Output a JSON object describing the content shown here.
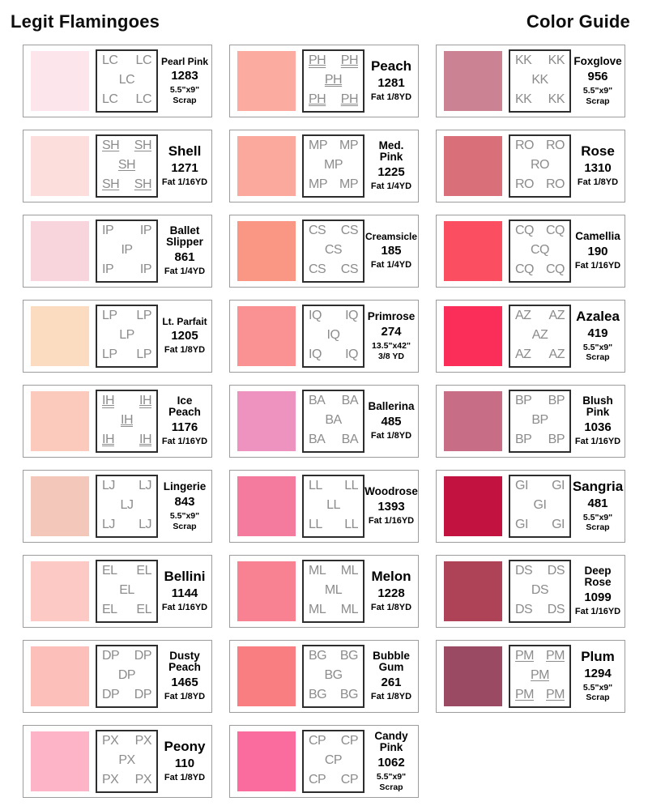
{
  "header": {
    "title_left": "Legit Flamingoes",
    "title_right": "Color Guide"
  },
  "palette": {
    "code_text_color": "#8c8c8c",
    "code_box_border": "#2d2d2d",
    "card_border": "#9c9c9c"
  },
  "cards": [
    {
      "code": "LC",
      "underline": "none",
      "name": "Pearl Pink",
      "number": "1283",
      "size": "5.5\"x9\"\nScrap",
      "swatch": "#fde5ec"
    },
    {
      "code": "PH",
      "underline": "double",
      "name": "Peach",
      "number": "1281",
      "size": "Fat 1/8YD",
      "swatch": "#fcaba0"
    },
    {
      "code": "KK",
      "underline": "none",
      "name": "Foxglove",
      "number": "956",
      "size": "5.5\"x9\"\nScrap",
      "swatch": "#cb8292"
    },
    {
      "code": "SH",
      "underline": "single",
      "name": "Shell",
      "number": "1271",
      "size": "Fat 1/16YD",
      "swatch": "#fcdfdd"
    },
    {
      "code": "MP",
      "underline": "none",
      "name": "Med.\nPink",
      "number": "1225",
      "size": "Fat 1/4YD",
      "swatch": "#fba99c"
    },
    {
      "code": "RO",
      "underline": "none",
      "name": "Rose",
      "number": "1310",
      "size": "Fat 1/8YD",
      "swatch": "#d96f79"
    },
    {
      "code": "IP",
      "underline": "none",
      "name": "Ballet\nSlipper",
      "number": "861",
      "size": "Fat 1/4YD",
      "swatch": "#f8d4dc"
    },
    {
      "code": "CS",
      "underline": "none",
      "name": "Creamsicle",
      "number": "185",
      "size": "Fat 1/4YD",
      "swatch": "#f99784"
    },
    {
      "code": "CQ",
      "underline": "none",
      "name": "Camellia",
      "number": "190",
      "size": "Fat 1/16YD",
      "swatch": "#fb4f61"
    },
    {
      "code": "LP",
      "underline": "none",
      "name": "Lt. Parfait",
      "number": "1205",
      "size": "Fat 1/8YD",
      "swatch": "#fbdcc0"
    },
    {
      "code": "IQ",
      "underline": "none",
      "name": "Primrose",
      "number": "274",
      "size": "13.5\"x42\"\n3/8 YD",
      "swatch": "#fa9193"
    },
    {
      "code": "AZ",
      "underline": "none",
      "name": "Azalea",
      "number": "419",
      "size": "5.5\"x9\"\nScrap",
      "swatch": "#fa2e58"
    },
    {
      "code": "IH",
      "underline": "double",
      "name": "Ice Peach",
      "number": "1176",
      "size": "Fat 1/16YD",
      "swatch": "#fccabd"
    },
    {
      "code": "BA",
      "underline": "none",
      "name": "Ballerina",
      "number": "485",
      "size": "Fat 1/8YD",
      "swatch": "#ee92bf"
    },
    {
      "code": "BP",
      "underline": "none",
      "name": "Blush\nPink",
      "number": "1036",
      "size": "Fat 1/16YD",
      "swatch": "#c76d86"
    },
    {
      "code": "LJ",
      "underline": "none",
      "name": "Lingerie",
      "number": "843",
      "size": "5.5\"x9\"\nScrap",
      "swatch": "#f3c8ba"
    },
    {
      "code": "LL",
      "underline": "none",
      "name": "Woodrose",
      "number": "1393",
      "size": "Fat 1/16YD",
      "swatch": "#f47b9e"
    },
    {
      "code": "GI",
      "underline": "none",
      "name": "Sangria",
      "number": "481",
      "size": "5.5\"x9\"\nScrap",
      "swatch": "#c21240"
    },
    {
      "code": "EL",
      "underline": "none",
      "name": "Bellini",
      "number": "1144",
      "size": "Fat 1/16YD",
      "swatch": "#fcc9c4"
    },
    {
      "code": "ML",
      "underline": "none",
      "name": "Melon",
      "number": "1228",
      "size": "Fat 1/8YD",
      "swatch": "#f98292"
    },
    {
      "code": "DS",
      "underline": "none",
      "name": "Deep\nRose",
      "number": "1099",
      "size": "Fat 1/16YD",
      "swatch": "#ae4257"
    },
    {
      "code": "DP",
      "underline": "none",
      "name": "Dusty\nPeach",
      "number": "1465",
      "size": "Fat 1/8YD",
      "swatch": "#fdbfba"
    },
    {
      "code": "BG",
      "underline": "none",
      "name": "Bubble\nGum",
      "number": "261",
      "size": "Fat 1/8YD",
      "swatch": "#f87e82"
    },
    {
      "code": "PM",
      "underline": "single",
      "name": "Plum",
      "number": "1294",
      "size": "5.5\"x9\"\nScrap",
      "swatch": "#9b4a64"
    },
    {
      "code": "PX",
      "underline": "none",
      "name": "Peony",
      "number": "110",
      "size": "Fat 1/8YD",
      "swatch": "#fdb4c6"
    },
    {
      "code": "CP",
      "underline": "none",
      "name": "Candy\nPink",
      "number": "1062",
      "size": "5.5\"x9\"\nScrap",
      "swatch": "#fa6b9e"
    }
  ]
}
